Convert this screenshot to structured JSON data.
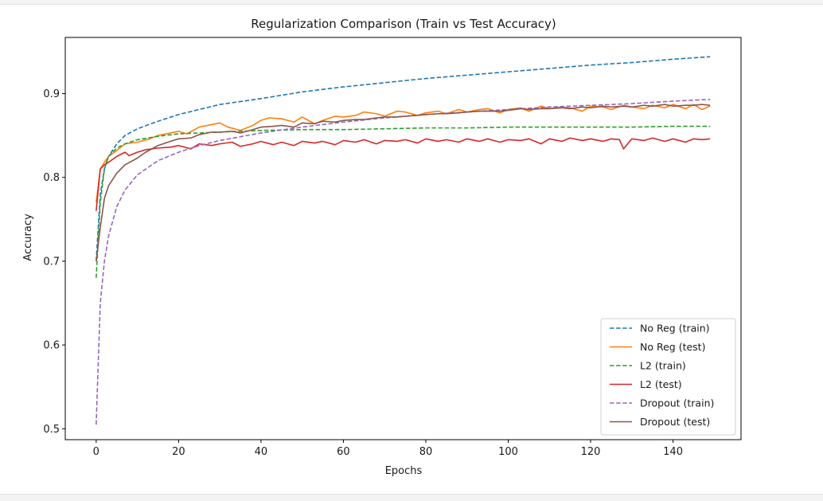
{
  "chart_data": {
    "type": "line",
    "title": "Regularization Comparison (Train vs Test Accuracy)",
    "xlabel": "Epochs",
    "ylabel": "Accuracy",
    "xlim": [
      -7.5,
      156.5
    ],
    "ylim": [
      0.487,
      0.967
    ],
    "xticks": [
      0,
      20,
      40,
      60,
      80,
      100,
      120,
      140
    ],
    "yticks": [
      0.5,
      0.6,
      0.7,
      0.8,
      0.9
    ],
    "ytick_labels": [
      "0.5",
      "0.6",
      "0.7",
      "0.8",
      "0.9"
    ],
    "legend_position": "lower-right",
    "grid": false,
    "series": [
      {
        "name": "No Reg (train)",
        "color": "#1f77b4",
        "style": "dashed",
        "x": [
          0,
          1,
          2,
          3,
          5,
          7,
          10,
          15,
          20,
          25,
          30,
          40,
          50,
          60,
          70,
          80,
          90,
          100,
          110,
          120,
          130,
          140,
          149
        ],
        "y": [
          0.7,
          0.78,
          0.81,
          0.825,
          0.84,
          0.85,
          0.858,
          0.867,
          0.875,
          0.881,
          0.887,
          0.894,
          0.902,
          0.908,
          0.913,
          0.918,
          0.922,
          0.926,
          0.93,
          0.934,
          0.937,
          0.941,
          0.944
        ]
      },
      {
        "name": "No Reg (test)",
        "color": "#ff7f0e",
        "style": "solid",
        "x": [
          0,
          1,
          2,
          3,
          5,
          7,
          10,
          13,
          15,
          18,
          20,
          22,
          25,
          28,
          30,
          32,
          35,
          38,
          40,
          42,
          45,
          48,
          50,
          53,
          55,
          58,
          60,
          63,
          65,
          68,
          70,
          73,
          75,
          78,
          80,
          83,
          85,
          88,
          90,
          93,
          95,
          98,
          100,
          103,
          105,
          108,
          110,
          113,
          115,
          118,
          120,
          123,
          125,
          128,
          130,
          133,
          135,
          138,
          140,
          143,
          145,
          147,
          149
        ],
        "y": [
          0.77,
          0.81,
          0.818,
          0.825,
          0.832,
          0.84,
          0.842,
          0.846,
          0.85,
          0.853,
          0.855,
          0.852,
          0.86,
          0.863,
          0.865,
          0.86,
          0.856,
          0.862,
          0.868,
          0.871,
          0.87,
          0.866,
          0.872,
          0.864,
          0.868,
          0.873,
          0.872,
          0.874,
          0.878,
          0.876,
          0.873,
          0.879,
          0.878,
          0.874,
          0.877,
          0.879,
          0.876,
          0.881,
          0.878,
          0.881,
          0.882,
          0.877,
          0.881,
          0.883,
          0.879,
          0.885,
          0.882,
          0.884,
          0.883,
          0.879,
          0.885,
          0.884,
          0.881,
          0.886,
          0.884,
          0.882,
          0.886,
          0.883,
          0.887,
          0.882,
          0.887,
          0.881,
          0.885
        ]
      },
      {
        "name": "L2 (train)",
        "color": "#2ca02c",
        "style": "dashed",
        "x": [
          0,
          1,
          2,
          3,
          5,
          7,
          10,
          15,
          20,
          30,
          40,
          50,
          60,
          70,
          80,
          90,
          100,
          110,
          120,
          130,
          140,
          149
        ],
        "y": [
          0.68,
          0.77,
          0.81,
          0.825,
          0.835,
          0.84,
          0.845,
          0.849,
          0.852,
          0.854,
          0.856,
          0.857,
          0.857,
          0.858,
          0.859,
          0.859,
          0.86,
          0.86,
          0.86,
          0.86,
          0.861,
          0.861
        ]
      },
      {
        "name": "L2 (test)",
        "color": "#d62728",
        "style": "solid",
        "x": [
          0,
          1,
          2,
          3,
          5,
          7,
          8,
          10,
          12,
          15,
          18,
          20,
          23,
          25,
          28,
          30,
          33,
          35,
          38,
          40,
          43,
          45,
          48,
          50,
          53,
          55,
          58,
          60,
          63,
          65,
          68,
          70,
          73,
          75,
          78,
          80,
          83,
          85,
          88,
          90,
          93,
          95,
          98,
          100,
          103,
          105,
          108,
          110,
          113,
          115,
          118,
          120,
          123,
          125,
          127,
          128,
          130,
          133,
          135,
          138,
          140,
          143,
          145,
          147,
          149
        ],
        "y": [
          0.76,
          0.81,
          0.815,
          0.818,
          0.825,
          0.83,
          0.826,
          0.83,
          0.833,
          0.835,
          0.836,
          0.838,
          0.834,
          0.84,
          0.838,
          0.84,
          0.842,
          0.837,
          0.84,
          0.843,
          0.839,
          0.842,
          0.838,
          0.843,
          0.841,
          0.843,
          0.839,
          0.844,
          0.842,
          0.845,
          0.84,
          0.844,
          0.843,
          0.845,
          0.841,
          0.846,
          0.843,
          0.845,
          0.842,
          0.846,
          0.843,
          0.846,
          0.842,
          0.845,
          0.844,
          0.846,
          0.84,
          0.846,
          0.843,
          0.847,
          0.844,
          0.846,
          0.843,
          0.846,
          0.845,
          0.834,
          0.846,
          0.844,
          0.847,
          0.843,
          0.846,
          0.842,
          0.846,
          0.845,
          0.846
        ]
      },
      {
        "name": "Dropout (train)",
        "color": "#9467bd",
        "style": "dashed",
        "x": [
          0,
          1,
          2,
          3,
          5,
          7,
          10,
          15,
          20,
          25,
          30,
          40,
          50,
          60,
          70,
          80,
          90,
          100,
          110,
          120,
          130,
          140,
          149
        ],
        "y": [
          0.505,
          0.65,
          0.7,
          0.73,
          0.765,
          0.785,
          0.803,
          0.82,
          0.83,
          0.838,
          0.844,
          0.853,
          0.86,
          0.866,
          0.871,
          0.875,
          0.878,
          0.881,
          0.884,
          0.886,
          0.888,
          0.891,
          0.893
        ]
      },
      {
        "name": "Dropout (test)",
        "color": "#8c564b",
        "style": "solid",
        "x": [
          0,
          1,
          2,
          3,
          5,
          7,
          10,
          12,
          15,
          18,
          20,
          23,
          25,
          28,
          30,
          33,
          35,
          38,
          40,
          43,
          45,
          48,
          50,
          53,
          55,
          58,
          60,
          63,
          65,
          68,
          70,
          73,
          75,
          78,
          80,
          83,
          85,
          88,
          90,
          93,
          95,
          98,
          100,
          103,
          105,
          108,
          110,
          113,
          115,
          118,
          120,
          123,
          125,
          128,
          130,
          133,
          135,
          138,
          140,
          143,
          145,
          147,
          149
        ],
        "y": [
          0.7,
          0.74,
          0.775,
          0.79,
          0.805,
          0.815,
          0.823,
          0.83,
          0.838,
          0.843,
          0.846,
          0.847,
          0.851,
          0.854,
          0.854,
          0.855,
          0.853,
          0.857,
          0.86,
          0.861,
          0.862,
          0.86,
          0.865,
          0.864,
          0.867,
          0.866,
          0.868,
          0.869,
          0.869,
          0.871,
          0.872,
          0.872,
          0.873,
          0.874,
          0.875,
          0.876,
          0.876,
          0.877,
          0.878,
          0.879,
          0.879,
          0.879,
          0.88,
          0.882,
          0.881,
          0.882,
          0.882,
          0.883,
          0.882,
          0.884,
          0.883,
          0.885,
          0.884,
          0.885,
          0.884,
          0.886,
          0.885,
          0.887,
          0.885,
          0.886,
          0.886,
          0.887,
          0.886
        ]
      }
    ]
  }
}
